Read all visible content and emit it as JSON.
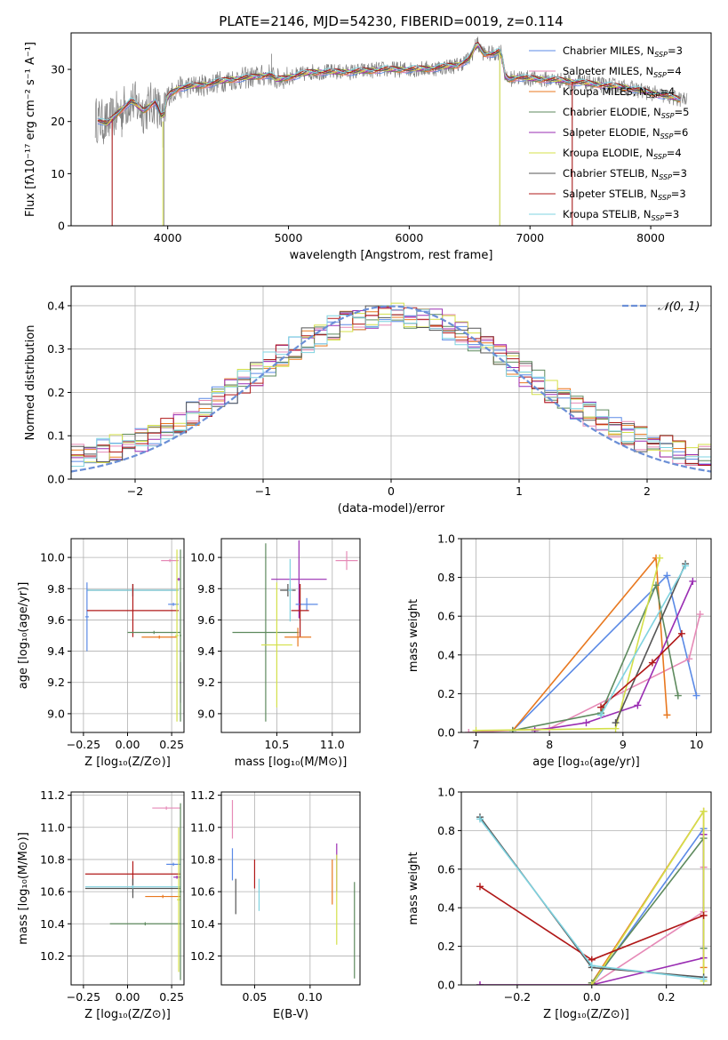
{
  "figure": {
    "title": "PLATE=2146, MJD=54230, FIBERID=0019, z=0.114"
  },
  "colors": {
    "Chabrier MILES": "#5b8ae6",
    "Salpeter MILES": "#e68ab7",
    "Kroupa MILES": "#e8781f",
    "Chabrier ELODIE": "#5e8a5e",
    "Salpeter ELODIE": "#9a2eb3",
    "Kroupa ELODIE": "#d4e04a",
    "Chabrier STELIB": "#555555",
    "Salpeter STELIB": "#b01818",
    "Kroupa STELIB": "#7fd3e0",
    "data": "#808080",
    "gaussian": "#6b8fd6"
  },
  "chart_data": [
    {
      "id": "spectrum",
      "type": "line",
      "title": "PLATE=2146, MJD=54230, FIBERID=0019, z=0.114",
      "xlabel": "wavelength [Angstrom, rest frame]",
      "ylabel": "Flux [fλ10⁻¹⁷ erg cm⁻² s⁻¹ A⁻¹]",
      "xlim": [
        3200,
        8500
      ],
      "ylim": [
        0,
        37
      ],
      "xticks": [
        "4000",
        "5000",
        "6000",
        "7000",
        "8000"
      ],
      "yticks": [
        "0",
        "10",
        "20",
        "30"
      ],
      "grid": false,
      "legend_position": "top-right",
      "legend": [
        {
          "label": "Chabrier MILES, N",
          "sub": "SSP",
          "tail": "=3"
        },
        {
          "label": "Salpeter MILES, N",
          "sub": "SSP",
          "tail": "=4"
        },
        {
          "label": "Kroupa MILES, N",
          "sub": "SSP",
          "tail": "=4"
        },
        {
          "label": "Chabrier ELODIE, N",
          "sub": "SSP",
          "tail": "=5"
        },
        {
          "label": "Salpeter ELODIE, N",
          "sub": "SSP",
          "tail": "=6"
        },
        {
          "label": "Kroupa ELODIE, N",
          "sub": "SSP",
          "tail": "=4"
        },
        {
          "label": "Chabrier STELIB, N",
          "sub": "SSP",
          "tail": "=3"
        },
        {
          "label": "Salpeter STELIB, N",
          "sub": "SSP",
          "tail": "=3"
        },
        {
          "label": "Kroupa STELIB, N",
          "sub": "SSP",
          "tail": "=3"
        }
      ],
      "continuum": [
        [
          3400,
          20.5
        ],
        [
          3500,
          19.5
        ],
        [
          3600,
          22
        ],
        [
          3700,
          24
        ],
        [
          3800,
          22
        ],
        [
          3900,
          24
        ],
        [
          3960,
          20
        ],
        [
          4000,
          25
        ],
        [
          4100,
          26.5
        ],
        [
          4300,
          27
        ],
        [
          4500,
          28
        ],
        [
          4700,
          28.5
        ],
        [
          4850,
          29
        ],
        [
          4900,
          28
        ],
        [
          5000,
          28.5
        ],
        [
          5200,
          29.5
        ],
        [
          5500,
          29.5
        ],
        [
          5800,
          30
        ],
        [
          6000,
          30
        ],
        [
          6200,
          30.2
        ],
        [
          6400,
          30.8
        ],
        [
          6500,
          32
        ],
        [
          6560,
          35
        ],
        [
          6620,
          33
        ],
        [
          6700,
          33
        ],
        [
          6760,
          33.5
        ],
        [
          6800,
          28
        ],
        [
          6900,
          28.5
        ],
        [
          7000,
          28.2
        ],
        [
          7200,
          28
        ],
        [
          7400,
          27.5
        ],
        [
          7600,
          27
        ],
        [
          7800,
          26.5
        ],
        [
          8000,
          25.5
        ],
        [
          8200,
          24.5
        ],
        [
          8300,
          24
        ]
      ],
      "spikes": [
        [
          3540,
          0
        ],
        [
          3620,
          17
        ],
        [
          3960,
          15
        ],
        [
          3970,
          0
        ],
        [
          4860,
          33
        ],
        [
          6560,
          36
        ],
        [
          6750,
          0
        ],
        [
          7350,
          0
        ]
      ]
    },
    {
      "id": "residuals",
      "type": "histogram",
      "xlabel": "(data-model)/error",
      "ylabel": "Normed distribution",
      "xlim": [
        -2.5,
        2.5
      ],
      "ylim": [
        0,
        0.445
      ],
      "xticks": [
        "−2",
        "−1",
        "0",
        "1",
        "2"
      ],
      "yticks": [
        "0.0",
        "0.1",
        "0.2",
        "0.3",
        "0.4"
      ],
      "grid": true,
      "legend_position": "top-right",
      "legend": [
        "𝒩(0, 1)"
      ],
      "bin_width": 0.1,
      "gaussian": {
        "mu": 0,
        "sigma": 1
      }
    },
    {
      "id": "age-vs-Z",
      "type": "errorbar",
      "xlabel": "Z [log₁₀(Z/Z⊙)]",
      "ylabel": "age  [log₁₀(age/yr)]",
      "xlim": [
        -0.32,
        0.32
      ],
      "ylim": [
        8.88,
        10.12
      ],
      "xticks": [
        "−0.25",
        "0.00",
        "0.25"
      ],
      "yticks": [
        "9.0",
        "9.2",
        "9.4",
        "9.6",
        "9.8",
        "10.0"
      ],
      "points": [
        {
          "model": "Chabrier STELIB",
          "x": 0.03,
          "xerr": 0.26,
          "y": 9.79,
          "yerr": 0.04
        },
        {
          "model": "Kroupa STELIB",
          "x": 0.03,
          "xerr": 0.26,
          "y": 9.79,
          "yerr": 0.04
        },
        {
          "model": "Chabrier MILES",
          "x": -0.23,
          "xerr": 0.01,
          "y": 9.62,
          "yerr": 0.22
        },
        {
          "model": "Salpeter STELIB",
          "x": 0.03,
          "xerr": 0.26,
          "y": 9.66,
          "yerr": 0.17
        },
        {
          "model": "Salpeter MILES",
          "x": 0.24,
          "xerr": 0.05,
          "y": 9.98,
          "yerr": 0.01
        },
        {
          "model": "Salpeter ELODIE",
          "x": 0.29,
          "xerr": 0.01,
          "y": 9.86,
          "yerr": 0.01
        },
        {
          "model": "Chabrier MILES",
          "x": 0.26,
          "xerr": 0.03,
          "y": 9.7,
          "yerr": 0.01
        },
        {
          "model": "Chabrier ELODIE",
          "x": 0.15,
          "xerr": 0.15,
          "y": 9.52,
          "yerr": 0.01
        },
        {
          "model": "Kroupa MILES",
          "x": 0.18,
          "xerr": 0.1,
          "y": 9.49,
          "yerr": 0.01
        },
        {
          "model": "Kroupa ELODIE",
          "x": 0.28,
          "xerr": 0.01,
          "y": 9.5,
          "yerr": 0.55
        },
        {
          "model": "Salpeter ELODIE",
          "x": 0.3,
          "xerr": 0.005,
          "y": 9.2,
          "yerr": 0.13
        },
        {
          "model": "Chabrier ELODIE",
          "x": 0.3,
          "xerr": 0.005,
          "y": 9.5,
          "yerr": 0.55
        }
      ]
    },
    {
      "id": "age-vs-mass",
      "type": "errorbar",
      "xlabel": "mass [log₁₀(M/M⊙)]",
      "ylabel": "",
      "xlim": [
        10.0,
        11.25
      ],
      "ylim": [
        8.88,
        10.12
      ],
      "xticks": [
        "10.5",
        "11.0"
      ],
      "yticks": [
        "9.0",
        "9.2",
        "9.4",
        "9.6",
        "9.8",
        "10.0"
      ],
      "points": [
        {
          "model": "Salpeter MILES",
          "x": 11.13,
          "xerr": 0.1,
          "y": 9.98,
          "yerr": 0.06
        },
        {
          "model": "Chabrier STELIB",
          "x": 10.6,
          "xerr": 0.07,
          "y": 9.79,
          "yerr": 0.04
        },
        {
          "model": "Salpeter ELODIE",
          "x": 10.7,
          "xerr": 0.25,
          "y": 9.86,
          "yerr": 0.25
        },
        {
          "model": "Chabrier MILES",
          "x": 10.77,
          "xerr": 0.1,
          "y": 9.7,
          "yerr": 0.04
        },
        {
          "model": "Salpeter STELIB",
          "x": 10.71,
          "xerr": 0.08,
          "y": 9.66,
          "yerr": 0.17
        },
        {
          "model": "Chabrier ELODIE",
          "x": 10.4,
          "xerr": 0.3,
          "y": 9.52,
          "yerr": 0.57
        },
        {
          "model": "Kroupa MILES",
          "x": 10.69,
          "xerr": 0.12,
          "y": 9.49,
          "yerr": 0.06
        },
        {
          "model": "Kroupa ELODIE",
          "x": 10.5,
          "xerr": 0.14,
          "y": 9.44,
          "yerr": 0.4
        },
        {
          "model": "Kroupa STELIB",
          "x": 10.62,
          "xerr": 0.02,
          "y": 9.79,
          "yerr": 0.2
        }
      ]
    },
    {
      "id": "mass-weight-vs-age",
      "type": "line",
      "xlabel": "age  [log₁₀(age/yr)]",
      "ylabel": "mass weight",
      "xlim": [
        6.8,
        10.2
      ],
      "ylim": [
        0,
        1
      ],
      "xticks": [
        "7",
        "8",
        "9",
        "10"
      ],
      "yticks": [
        "0.0",
        "0.2",
        "0.4",
        "0.6",
        "0.8",
        "1.0"
      ],
      "grid": true,
      "series": [
        {
          "model": "Chabrier MILES",
          "x": [
            7.5,
            9.6,
            10.0
          ],
          "y": [
            0.01,
            0.81,
            0.19
          ]
        },
        {
          "model": "Salpeter MILES",
          "x": [
            6.9,
            8.0,
            9.9,
            10.05
          ],
          "y": [
            0.0,
            0.02,
            0.38,
            0.61
          ]
        },
        {
          "model": "Kroupa MILES",
          "x": [
            7.5,
            9.45,
            9.6
          ],
          "y": [
            0.01,
            0.9,
            0.09
          ]
        },
        {
          "model": "Chabrier ELODIE",
          "x": [
            7.5,
            8.7,
            9.45,
            9.75
          ],
          "y": [
            0.01,
            0.1,
            0.76,
            0.19
          ]
        },
        {
          "model": "Salpeter ELODIE",
          "x": [
            7.8,
            8.5,
            9.2,
            9.95
          ],
          "y": [
            0.01,
            0.05,
            0.14,
            0.78
          ]
        },
        {
          "model": "Kroupa ELODIE",
          "x": [
            7.0,
            8.9,
            9.5
          ],
          "y": [
            0.01,
            0.02,
            0.9
          ]
        },
        {
          "model": "Chabrier STELIB",
          "x": [
            8.9,
            9.85
          ],
          "y": [
            0.05,
            0.87
          ]
        },
        {
          "model": "Salpeter STELIB",
          "x": [
            8.7,
            9.4,
            9.8
          ],
          "y": [
            0.13,
            0.36,
            0.51
          ]
        },
        {
          "model": "Kroupa STELIB",
          "x": [
            8.7,
            9.85
          ],
          "y": [
            0.09,
            0.86
          ]
        }
      ]
    },
    {
      "id": "mass-vs-Z",
      "type": "errorbar",
      "xlabel": "Z [log₁₀(Z/Z⊙)]",
      "ylabel": "mass [log₁₀(M/M⊙)]",
      "xlim": [
        -0.32,
        0.32
      ],
      "ylim": [
        10.02,
        11.22
      ],
      "xticks": [
        "−0.25",
        "0.00",
        "0.25"
      ],
      "yticks": [
        "10.2",
        "10.4",
        "10.6",
        "10.8",
        "11.0",
        "11.2"
      ],
      "points": [
        {
          "model": "Salpeter MILES",
          "x": 0.22,
          "xerr": 0.08,
          "y": 11.12,
          "yerr": 0.01
        },
        {
          "model": "Salpeter STELIB",
          "x": 0.03,
          "xerr": 0.27,
          "y": 10.71,
          "yerr": 0.08
        },
        {
          "model": "Chabrier STELIB",
          "x": 0.03,
          "xerr": 0.27,
          "y": 10.62,
          "yerr": 0.06
        },
        {
          "model": "Kroupa STELIB",
          "x": 0.03,
          "xerr": 0.27,
          "y": 10.63,
          "yerr": 0.01
        },
        {
          "model": "Chabrier MILES",
          "x": 0.26,
          "xerr": 0.04,
          "y": 10.77,
          "yerr": 0.01
        },
        {
          "model": "Kroupa MILES",
          "x": 0.2,
          "xerr": 0.1,
          "y": 10.57,
          "yerr": 0.01
        },
        {
          "model": "Chabrier ELODIE",
          "x": 0.1,
          "xerr": 0.2,
          "y": 10.4,
          "yerr": 0.01
        },
        {
          "model": "Salpeter ELODIE",
          "x": 0.28,
          "xerr": 0.02,
          "y": 10.69,
          "yerr": 0.01
        },
        {
          "model": "Kroupa ELODIE",
          "x": 0.29,
          "xerr": 0.01,
          "y": 10.55,
          "yerr": 0.45
        },
        {
          "model": "Chabrier ELODIE",
          "x": 0.3,
          "xerr": 0.005,
          "y": 10.6,
          "yerr": 0.55
        }
      ]
    },
    {
      "id": "mass-vs-ebv",
      "type": "errorbar",
      "xlabel": "E(B-V)",
      "ylabel": "",
      "xlim": [
        0.02,
        0.145
      ],
      "ylim": [
        10.02,
        11.22
      ],
      "xticks": [
        "0.05",
        "0.10"
      ],
      "yticks": [
        "10.2",
        "10.4",
        "10.6",
        "10.8",
        "11.0",
        "11.2"
      ],
      "points": [
        {
          "model": "Salpeter MILES",
          "x": 0.03,
          "xerr": 0.0,
          "y": 11.05,
          "yerr": 0.12
        },
        {
          "model": "Chabrier MILES",
          "x": 0.03,
          "xerr": 0.0,
          "y": 10.77,
          "yerr": 0.1
        },
        {
          "model": "Chabrier STELIB",
          "x": 0.033,
          "xerr": 0.0,
          "y": 10.57,
          "yerr": 0.11
        },
        {
          "model": "Salpeter STELIB",
          "x": 0.05,
          "xerr": 0.0,
          "y": 10.71,
          "yerr": 0.09
        },
        {
          "model": "Kroupa STELIB",
          "x": 0.054,
          "xerr": 0.0,
          "y": 10.58,
          "yerr": 0.1
        },
        {
          "model": "Kroupa MILES",
          "x": 0.12,
          "xerr": 0.0,
          "y": 10.66,
          "yerr": 0.14
        },
        {
          "model": "Salpeter ELODIE",
          "x": 0.124,
          "xerr": 0.0,
          "y": 10.75,
          "yerr": 0.15
        },
        {
          "model": "Kroupa ELODIE",
          "x": 0.124,
          "xerr": 0.0,
          "y": 10.55,
          "yerr": 0.28
        },
        {
          "model": "Chabrier ELODIE",
          "x": 0.14,
          "xerr": 0.0,
          "y": 10.36,
          "yerr": 0.3
        }
      ]
    },
    {
      "id": "mass-weight-vs-Z",
      "type": "line",
      "xlabel": "Z [log₁₀(Z/Z⊙)]",
      "ylabel": "mass weight",
      "xlim": [
        -0.35,
        0.32
      ],
      "ylim": [
        0,
        1
      ],
      "xticks": [
        "−0.2",
        "0.0",
        "0.2"
      ],
      "yticks": [
        "0.0",
        "0.2",
        "0.4",
        "0.6",
        "0.8",
        "1.0"
      ],
      "grid": true,
      "series": [
        {
          "model": "Chabrier MILES",
          "x": [
            0.0,
            0.3,
            0.3
          ],
          "y": [
            0.0,
            0.81,
            0.19
          ]
        },
        {
          "model": "Salpeter MILES",
          "x": [
            -0.3,
            0.0,
            0.3,
            0.3
          ],
          "y": [
            0.0,
            0.0,
            0.38,
            0.61
          ]
        },
        {
          "model": "Kroupa MILES",
          "x": [
            0.0,
            0.3,
            0.3
          ],
          "y": [
            0.01,
            0.9,
            0.09
          ]
        },
        {
          "model": "Chabrier ELODIE",
          "x": [
            0.0,
            0.3,
            0.3
          ],
          "y": [
            0.01,
            0.76,
            0.19
          ]
        },
        {
          "model": "Salpeter ELODIE",
          "x": [
            -0.3,
            0.0,
            0.3,
            0.3
          ],
          "y": [
            0.0,
            0.0,
            0.14,
            0.78
          ]
        },
        {
          "model": "Kroupa ELODIE",
          "x": [
            0.0,
            0.3,
            0.3
          ],
          "y": [
            0.0,
            0.9,
            0.02
          ]
        },
        {
          "model": "Chabrier STELIB",
          "x": [
            -0.3,
            0.0,
            0.3
          ],
          "y": [
            0.87,
            0.09,
            0.04
          ]
        },
        {
          "model": "Salpeter STELIB",
          "x": [
            -0.3,
            0.0,
            0.3
          ],
          "y": [
            0.51,
            0.13,
            0.36
          ]
        },
        {
          "model": "Kroupa STELIB",
          "x": [
            -0.3,
            0.0,
            0.3
          ],
          "y": [
            0.86,
            0.1,
            0.03
          ]
        }
      ]
    }
  ]
}
